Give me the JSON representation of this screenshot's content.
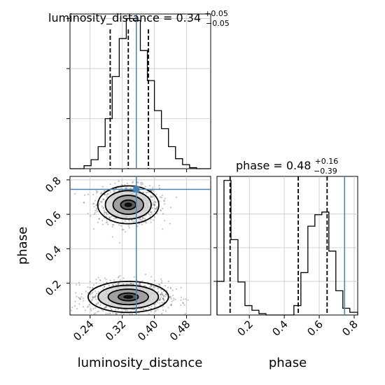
{
  "chart_data": {
    "type": "corner",
    "parameters": [
      "luminosity_distance",
      "phase"
    ],
    "truth": {
      "luminosity_distance": 0.355,
      "phase": 0.745
    },
    "axis_ranges": {
      "luminosity_distance": [
        0.19,
        0.54
      ],
      "phase": [
        0.015,
        0.82
      ]
    },
    "grid": true,
    "titles": {
      "luminosity_distance": {
        "base": "luminosity_distance = 0.34",
        "plus": "+0.05",
        "minus": "−0.05"
      },
      "phase": {
        "base": "phase = 0.48",
        "plus": "+0.16",
        "minus": "−0.39"
      }
    },
    "xlabels": {
      "luminosity_distance": "luminosity_distance",
      "phase": "phase"
    },
    "ylabels": {
      "phase": "phase"
    },
    "ticks": {
      "luminosity_distance": [
        {
          "v": 0.24,
          "label": "0.24"
        },
        {
          "v": 0.32,
          "label": "0.32"
        },
        {
          "v": 0.4,
          "label": "0.40"
        },
        {
          "v": 0.48,
          "label": "0.48"
        }
      ],
      "phase": [
        {
          "v": 0.2,
          "label": "0.2"
        },
        {
          "v": 0.4,
          "label": "0.4"
        },
        {
          "v": 0.6,
          "label": "0.6"
        },
        {
          "v": 0.8,
          "label": "0.8"
        }
      ]
    },
    "hist_luminosity_distance": {
      "bin_edges": [
        0.19,
        0.2075,
        0.225,
        0.2425,
        0.26,
        0.2775,
        0.295,
        0.3125,
        0.33,
        0.3475,
        0.365,
        0.3825,
        0.4,
        0.4175,
        0.435,
        0.4525,
        0.47,
        0.4875,
        0.505,
        0.5225,
        0.54
      ],
      "counts": [
        0,
        0,
        3,
        9,
        22,
        50,
        92,
        130,
        150,
        148,
        118,
        88,
        58,
        40,
        22,
        10,
        4,
        1,
        0,
        0
      ],
      "quantiles": [
        0.29,
        0.335,
        0.385
      ]
    },
    "hist_phase": {
      "bin_edges": [
        0.015,
        0.055,
        0.095,
        0.135,
        0.175,
        0.215,
        0.255,
        0.295,
        0.335,
        0.375,
        0.415,
        0.455,
        0.495,
        0.535,
        0.575,
        0.615,
        0.655,
        0.695,
        0.735,
        0.775,
        0.82
      ],
      "counts": [
        50,
        200,
        112,
        49,
        14,
        7,
        2,
        0,
        0,
        0,
        0,
        14,
        63,
        132,
        149,
        153,
        95,
        36,
        10,
        4
      ],
      "quantiles": [
        0.09,
        0.48,
        0.645
      ]
    },
    "scatter_2d": {
      "modes": [
        {
          "cx": 0.335,
          "cy": 0.655,
          "sx": 0.038,
          "sy": 0.055,
          "n": 900
        },
        {
          "cx": 0.335,
          "cy": 0.12,
          "sx": 0.05,
          "sy": 0.045,
          "n": 1100
        }
      ]
    }
  }
}
